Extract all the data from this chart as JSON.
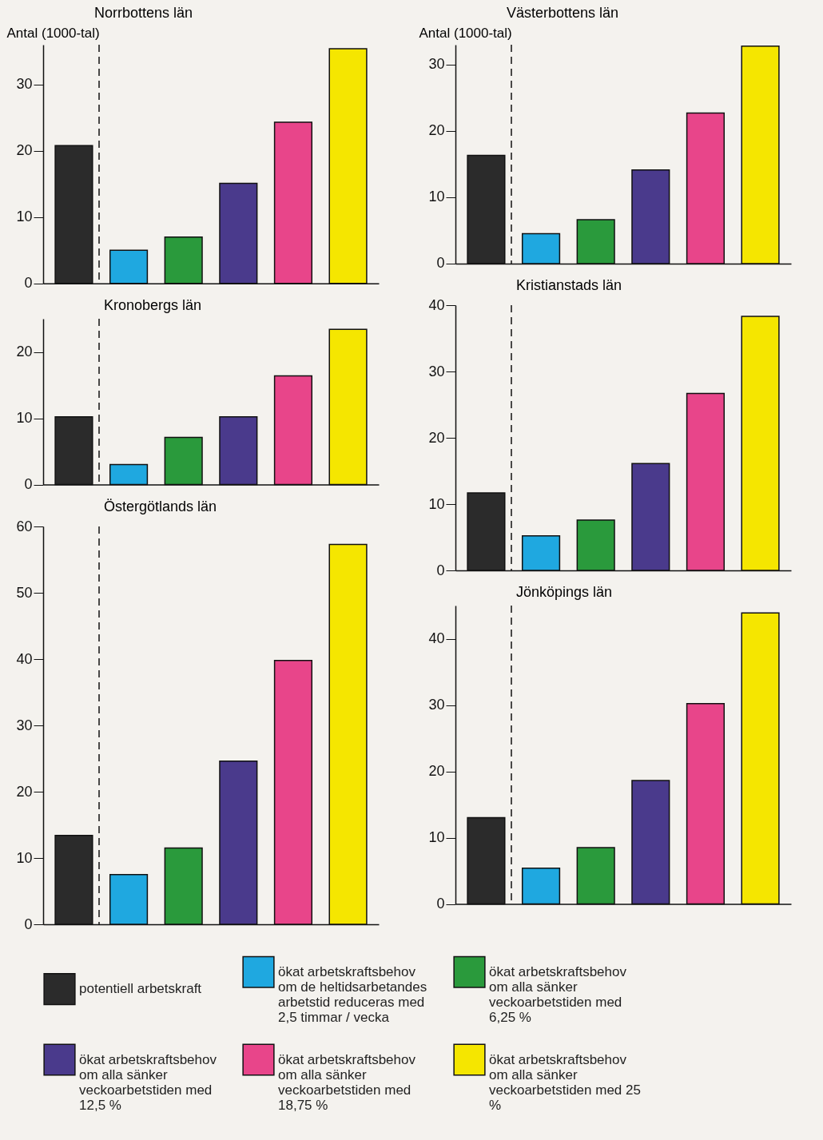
{
  "chart_data": [
    {
      "type": "bar",
      "title": "Norrbottens län",
      "ylabel": "Antal (1000-tal)",
      "categories": [
        null,
        null,
        null,
        null,
        null,
        null
      ],
      "stacked": true,
      "ylim": [
        0,
        36
      ],
      "yticks": [
        0,
        10,
        20,
        30
      ],
      "grid": false,
      "tick_labels": "y",
      "legend": "bottom",
      "series": [
        {
          "name": "potentiell arbetskraft",
          "color": "#2b2b2b",
          "values": [
            20.8,
            null,
            null,
            null,
            null,
            null
          ]
        },
        {
          "name": "ökat arbetskraftsbehov om de heltidsarbetandes arbetstid reduceras med 2,5 timmar / vecka",
          "color": "#1fa8e0",
          "values": [
            null,
            5.0,
            null,
            null,
            null,
            null
          ]
        },
        {
          "name": "ökat arbetskraftsbehov om alla sänker veckoarbetstiden med 6,25 %",
          "color": "#2a9a3c",
          "values": [
            null,
            null,
            7.0,
            null,
            null,
            null
          ]
        },
        {
          "name": "ökat arbetskraftsbehov om alla sänker veckoarbetstiden med 12,5 %",
          "color": "#4a3a8c",
          "values": [
            null,
            null,
            null,
            15.1,
            null,
            null
          ]
        },
        {
          "name": "ökat arbetskraftsbehov om alla sänker veckoarbetstiden med 18,75 %",
          "color": "#e8458a",
          "values": [
            null,
            null,
            null,
            null,
            24.3,
            null
          ]
        },
        {
          "name": "ökat arbetskraftsbehov om alla sänker veckoarbetstiden med 25 %",
          "color": "#f5e600",
          "values": [
            null,
            null,
            null,
            null,
            null,
            35.4
          ]
        }
      ]
    },
    {
      "type": "bar",
      "title": "Västerbottens län",
      "ylabel": "Antal (1000-tal)",
      "categories": [
        null,
        null,
        null,
        null,
        null,
        null
      ],
      "stacked": true,
      "ylim": [
        0,
        33
      ],
      "yticks": [
        0,
        10,
        20,
        30
      ],
      "grid": false,
      "tick_labels": "y",
      "series": [
        {
          "name": "potentiell arbetskraft",
          "color": "#2b2b2b",
          "values": [
            16.3,
            null,
            null,
            null,
            null,
            null
          ]
        },
        {
          "name": "ökat arbetskraftsbehov om de heltidsarbetandes arbetstid reduceras med 2,5 timmar / vecka",
          "color": "#1fa8e0",
          "values": [
            null,
            4.5,
            null,
            null,
            null,
            null
          ]
        },
        {
          "name": "ökat arbetskraftsbehov om alla sänker veckoarbetstiden med 6,25 %",
          "color": "#2a9a3c",
          "values": [
            null,
            null,
            6.6,
            null,
            null,
            null
          ]
        },
        {
          "name": "ökat arbetskraftsbehov om alla sänker veckoarbetstiden med 12,5 %",
          "color": "#4a3a8c",
          "values": [
            null,
            null,
            null,
            14.1,
            null,
            null
          ]
        },
        {
          "name": "ökat arbetskraftsbehov om alla sänker veckoarbetstiden med 18,75 %",
          "color": "#e8458a",
          "values": [
            null,
            null,
            null,
            null,
            22.7,
            null
          ]
        },
        {
          "name": "ökat arbetskraftsbehov om alla sänker veckoarbetstiden med 25 %",
          "color": "#f5e600",
          "values": [
            null,
            null,
            null,
            null,
            null,
            32.8
          ]
        }
      ]
    },
    {
      "type": "bar",
      "title": "Kronobergs län",
      "categories": [
        null,
        null,
        null,
        null,
        null,
        null
      ],
      "stacked": true,
      "ylim": [
        0,
        25
      ],
      "yticks": [
        0,
        10,
        20
      ],
      "grid": false,
      "tick_labels": "y",
      "series": [
        {
          "name": "potentiell arbetskraft",
          "color": "#2b2b2b",
          "values": [
            10.2,
            null,
            null,
            null,
            null,
            null
          ]
        },
        {
          "name": "ökat arbetskraftsbehov om de heltidsarbetandes arbetstid reduceras med 2,5 timmar / vecka",
          "color": "#1fa8e0",
          "values": [
            null,
            3.0,
            null,
            null,
            null,
            null
          ]
        },
        {
          "name": "ökat arbetskraftsbehov om alla sänker veckoarbetstiden med 6,25 %",
          "color": "#2a9a3c",
          "values": [
            null,
            null,
            7.1,
            null,
            null,
            null
          ]
        },
        {
          "name": "ökat arbetskraftsbehov om alla sänker veckoarbetstiden med 12,5 %",
          "color": "#4a3a8c",
          "values": [
            null,
            null,
            null,
            10.2,
            null,
            null
          ]
        },
        {
          "name": "ökat arbetskraftsbehov om alla sänker veckoarbetstiden med 18,75 %",
          "color": "#e8458a",
          "values": [
            null,
            null,
            null,
            null,
            16.4,
            null
          ]
        },
        {
          "name": "ökat arbetskraftsbehov om alla sänker veckoarbetstiden med 25 %",
          "color": "#f5e600",
          "values": [
            null,
            null,
            null,
            null,
            null,
            23.4
          ]
        }
      ]
    },
    {
      "type": "bar",
      "title": "Kristianstads län",
      "categories": [
        null,
        null,
        null,
        null,
        null,
        null
      ],
      "stacked": true,
      "ylim": [
        0,
        40
      ],
      "yticks": [
        0,
        10,
        20,
        30,
        40
      ],
      "grid": false,
      "tick_labels": "y",
      "series": [
        {
          "name": "potentiell arbetskraft",
          "color": "#2b2b2b",
          "values": [
            11.7,
            null,
            null,
            null,
            null,
            null
          ]
        },
        {
          "name": "ökat arbetskraftsbehov om de heltidsarbetandes arbetstid reduceras med 2,5 timmar / vecka",
          "color": "#1fa8e0",
          "values": [
            null,
            5.2,
            null,
            null,
            null,
            null
          ]
        },
        {
          "name": "ökat arbetskraftsbehov om alla sänker veckoarbetstiden med 6,25 %",
          "color": "#2a9a3c",
          "values": [
            null,
            null,
            7.6,
            null,
            null,
            null
          ]
        },
        {
          "name": "ökat arbetskraftsbehov om alla sänker veckoarbetstiden med 12,5 %",
          "color": "#4a3a8c",
          "values": [
            null,
            null,
            null,
            16.1,
            null,
            null
          ]
        },
        {
          "name": "ökat arbetskraftsbehov om alla sänker veckoarbetstiden med 18,75 %",
          "color": "#e8458a",
          "values": [
            null,
            null,
            null,
            null,
            26.7,
            null
          ]
        },
        {
          "name": "ökat arbetskraftsbehov om alla sänker veckoarbetstiden med 25 %",
          "color": "#f5e600",
          "values": [
            null,
            null,
            null,
            null,
            null,
            38.3
          ]
        }
      ]
    },
    {
      "type": "bar",
      "title": "Östergötlands län",
      "categories": [
        null,
        null,
        null,
        null,
        null,
        null
      ],
      "stacked": true,
      "ylim": [
        0,
        60
      ],
      "yticks": [
        0,
        10,
        20,
        30,
        40,
        50,
        60
      ],
      "grid": false,
      "tick_labels": "y",
      "series": [
        {
          "name": "potentiell arbetskraft",
          "color": "#2b2b2b",
          "values": [
            13.4,
            null,
            null,
            null,
            null,
            null
          ]
        },
        {
          "name": "ökat arbetskraftsbehov om de heltidsarbetandes arbetstid reduceras med 2,5 timmar / vecka",
          "color": "#1fa8e0",
          "values": [
            null,
            7.5,
            null,
            null,
            null,
            null
          ]
        },
        {
          "name": "ökat arbetskraftsbehov om alla sänker veckoarbetstiden med 6,25 %",
          "color": "#2a9a3c",
          "values": [
            null,
            null,
            11.5,
            null,
            null,
            null
          ]
        },
        {
          "name": "ökat arbetskraftsbehov om alla sänker veckoarbetstiden med 12,5 %",
          "color": "#4a3a8c",
          "values": [
            null,
            null,
            null,
            24.6,
            null,
            null
          ]
        },
        {
          "name": "ökat arbetskraftsbehov om alla sänker veckoarbetstiden med 18,75 %",
          "color": "#e8458a",
          "values": [
            null,
            null,
            null,
            null,
            39.8,
            null
          ]
        },
        {
          "name": "ökat arbetskraftsbehov om alla sänker veckoarbetstiden med 25 %",
          "color": "#f5e600",
          "values": [
            null,
            null,
            null,
            null,
            null,
            57.3
          ]
        }
      ]
    },
    {
      "type": "bar",
      "title": "Jönköpings län",
      "categories": [
        null,
        null,
        null,
        null,
        null,
        null
      ],
      "stacked": true,
      "ylim": [
        0,
        45
      ],
      "yticks": [
        0,
        10,
        20,
        30,
        40
      ],
      "grid": false,
      "tick_labels": "y",
      "series": [
        {
          "name": "potentiell arbetskraft",
          "color": "#2b2b2b",
          "values": [
            13.0,
            null,
            null,
            null,
            null,
            null
          ]
        },
        {
          "name": "ökat arbetskraftsbehov om de heltidsarbetandes arbetstid reduceras med 2,5 timmar / vecka",
          "color": "#1fa8e0",
          "values": [
            null,
            5.4,
            null,
            null,
            null,
            null
          ]
        },
        {
          "name": "ökat arbetskraftsbehov om alla sänker veckoarbetstiden med 6,25 %",
          "color": "#2a9a3c",
          "values": [
            null,
            null,
            8.5,
            null,
            null,
            null
          ]
        },
        {
          "name": "ökat arbetskraftsbehov om alla sänker veckoarbetstiden med 12,5 %",
          "color": "#4a3a8c",
          "values": [
            null,
            null,
            null,
            18.6,
            null,
            null
          ]
        },
        {
          "name": "ökat arbetskraftsbehov om alla sänker veckoarbetstiden med 18,75 %",
          "color": "#e8458a",
          "values": [
            null,
            null,
            null,
            null,
            30.2,
            null
          ]
        },
        {
          "name": "ökat arbetskraftsbehov om alla sänker veckoarbetstiden med 25 %",
          "color": "#f5e600",
          "values": [
            null,
            null,
            null,
            null,
            null,
            43.9
          ]
        }
      ]
    }
  ]
}
